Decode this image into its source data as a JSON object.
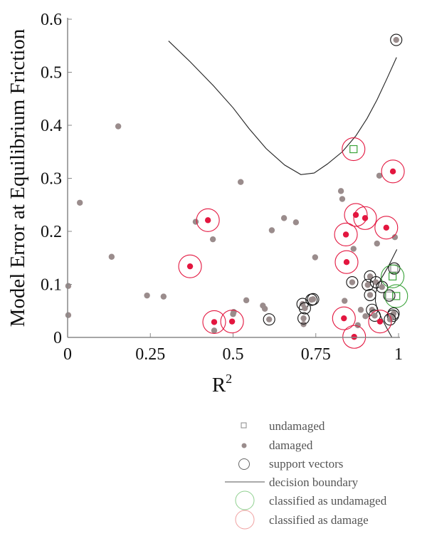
{
  "chart_data": {
    "type": "scatter",
    "xlabel": "R",
    "xlabel_sup": "2",
    "ylabel": "Model Error at Equilibrium Friction",
    "xlim": [
      0,
      1
    ],
    "ylim": [
      0,
      0.6
    ],
    "xticks": [
      0,
      0.25,
      0.5,
      0.75,
      1
    ],
    "xtick_labels": [
      "0",
      "0.25",
      "0.5",
      "0.75",
      "1"
    ],
    "yticks": [
      0,
      0.1,
      0.2,
      0.3,
      0.4,
      0.5,
      0.6
    ],
    "ytick_labels": [
      "0",
      "0.1",
      "0.2",
      "0.3",
      "0.4",
      "0.5",
      "0.6"
    ],
    "grid": false,
    "legend_position": "bottom-right, below plot",
    "colors": {
      "damaged": "#9a8c8c",
      "undamaged": "#888888",
      "support_vector": "#000000",
      "classified_undamaged": "#3aa33a",
      "classified_damage": "#e3163f"
    },
    "legend": [
      {
        "label": "undamaged",
        "marker": "square"
      },
      {
        "label": "damaged",
        "marker": "dot"
      },
      {
        "label": "support vectors",
        "marker": "circle"
      },
      {
        "label": "decision boundary",
        "marker": "line"
      },
      {
        "label": "classified as undamaged",
        "marker": "green-circle"
      },
      {
        "label": "classified as damage",
        "marker": "red-circle"
      }
    ],
    "damaged_points": [
      [
        0.002,
        0.042
      ],
      [
        0.002,
        0.097
      ],
      [
        0.037,
        0.254
      ],
      [
        0.133,
        0.152
      ],
      [
        0.153,
        0.398
      ],
      [
        0.24,
        0.079
      ],
      [
        0.29,
        0.077
      ],
      [
        0.387,
        0.218
      ],
      [
        0.439,
        0.185
      ],
      [
        0.443,
        0.013
      ],
      [
        0.5,
        0.044
      ],
      [
        0.502,
        0.048
      ],
      [
        0.523,
        0.293
      ],
      [
        0.54,
        0.07
      ],
      [
        0.59,
        0.06
      ],
      [
        0.596,
        0.054
      ],
      [
        0.617,
        0.202
      ],
      [
        0.654,
        0.225
      ],
      [
        0.69,
        0.217
      ],
      [
        0.713,
        0.025
      ],
      [
        0.748,
        0.151
      ],
      [
        0.826,
        0.276
      ],
      [
        0.83,
        0.261
      ],
      [
        0.837,
        0.069
      ],
      [
        0.864,
        0.167
      ],
      [
        0.877,
        0.023
      ],
      [
        0.886,
        0.052
      ],
      [
        0.935,
        0.177
      ],
      [
        0.942,
        0.305
      ],
      [
        0.989,
        0.189
      ],
      [
        0.9,
        0.04
      ]
    ],
    "support_vectors_damaged": [
      [
        0.993,
        0.561
      ],
      [
        0.609,
        0.034
      ],
      [
        0.71,
        0.063
      ],
      [
        0.717,
        0.055
      ],
      [
        0.713,
        0.036
      ],
      [
        0.737,
        0.071
      ],
      [
        0.742,
        0.072
      ],
      [
        0.86,
        0.104
      ],
      [
        0.914,
        0.115
      ],
      [
        0.907,
        0.099
      ],
      [
        0.932,
        0.104
      ],
      [
        0.95,
        0.095
      ],
      [
        0.914,
        0.08
      ],
      [
        0.92,
        0.052
      ],
      [
        0.928,
        0.041
      ],
      [
        0.983,
        0.041
      ],
      [
        0.985,
        0.045
      ],
      [
        0.974,
        0.034
      ]
    ],
    "support_vectors_undamaged": [
      [
        0.987,
        0.13
      ],
      [
        0.972,
        0.079
      ]
    ],
    "classified_undamaged": [
      {
        "class": "undamaged",
        "point": [
          0.982,
          0.115
        ]
      },
      {
        "class": "undamaged",
        "point": [
          0.993,
          0.078
        ]
      }
    ],
    "classified_damage": [
      {
        "class": "undamaged",
        "point": [
          0.864,
          0.355
        ]
      },
      {
        "class": "damaged",
        "point": [
          0.983,
          0.313
        ]
      },
      {
        "class": "damaged",
        "point": [
          0.871,
          0.231
        ]
      },
      {
        "class": "damaged",
        "point": [
          0.899,
          0.225
        ]
      },
      {
        "class": "damaged",
        "point": [
          0.963,
          0.207
        ]
      },
      {
        "class": "damaged",
        "point": [
          0.841,
          0.194
        ]
      },
      {
        "class": "damaged",
        "point": [
          0.843,
          0.142
        ]
      },
      {
        "class": "damaged",
        "point": [
          0.835,
          0.036
        ]
      },
      {
        "class": "damaged",
        "point": [
          0.944,
          0.03
        ]
      },
      {
        "class": "damaged",
        "point": [
          0.866,
          0.001
        ]
      },
      {
        "class": "damaged",
        "point": [
          0.37,
          0.134
        ]
      },
      {
        "class": "damaged",
        "point": [
          0.424,
          0.221
        ]
      },
      {
        "class": "damaged",
        "point": [
          0.443,
          0.029
        ]
      },
      {
        "class": "damaged",
        "point": [
          0.497,
          0.03
        ]
      }
    ],
    "decision_boundary": [
      [
        [
          0.305,
          0.559
        ],
        [
          0.37,
          0.52
        ],
        [
          0.44,
          0.475
        ],
        [
          0.5,
          0.433
        ],
        [
          0.548,
          0.394
        ],
        [
          0.6,
          0.356
        ],
        [
          0.656,
          0.325
        ],
        [
          0.705,
          0.307
        ],
        [
          0.745,
          0.31
        ],
        [
          0.785,
          0.327
        ],
        [
          0.83,
          0.35
        ],
        [
          0.871,
          0.38
        ],
        [
          0.905,
          0.413
        ],
        [
          0.935,
          0.448
        ],
        [
          0.965,
          0.488
        ],
        [
          0.994,
          0.528
        ]
      ],
      [
        [
          0.995,
          0.166
        ],
        [
          0.97,
          0.135
        ],
        [
          0.945,
          0.108
        ],
        [
          0.931,
          0.085
        ],
        [
          0.93,
          0.068
        ],
        [
          0.935,
          0.055
        ],
        [
          0.95,
          0.035
        ],
        [
          0.965,
          0.017
        ],
        [
          0.98,
          0.0
        ]
      ]
    ]
  }
}
